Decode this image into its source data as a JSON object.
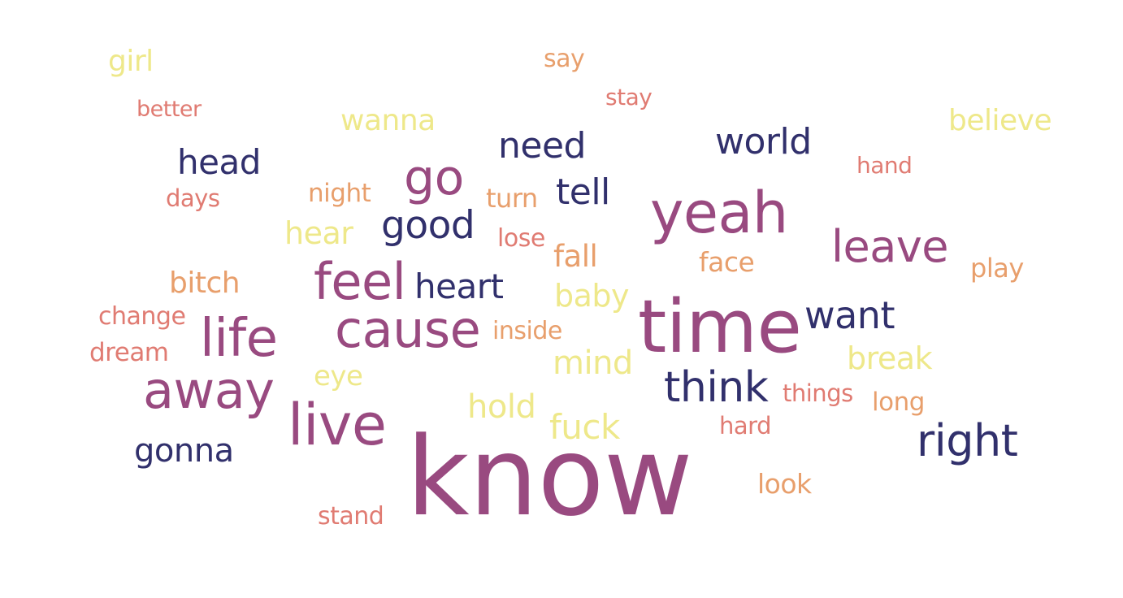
{
  "colors": {
    "plum": "#994a80",
    "navy": "#31306c",
    "yellow": "#eee88a",
    "orange": "#e89f6c",
    "salmon": "#e07b72",
    "background": "#ffffff"
  },
  "words": [
    "girl",
    "say",
    "stay",
    "better",
    "wanna",
    "believe",
    "need",
    "world",
    "head",
    "hand",
    "go",
    "tell",
    "days",
    "night",
    "turn",
    "yeah",
    "good",
    "hear",
    "lose",
    "leave",
    "fall",
    "face",
    "play",
    "bitch",
    "feel",
    "heart",
    "baby",
    "change",
    "time",
    "want",
    "cause",
    "life",
    "inside",
    "dream",
    "break",
    "mind",
    "eye",
    "away",
    "think",
    "things",
    "long",
    "hold",
    "live",
    "hard",
    "fuck",
    "right",
    "gonna",
    "know",
    "look",
    "stand"
  ]
}
